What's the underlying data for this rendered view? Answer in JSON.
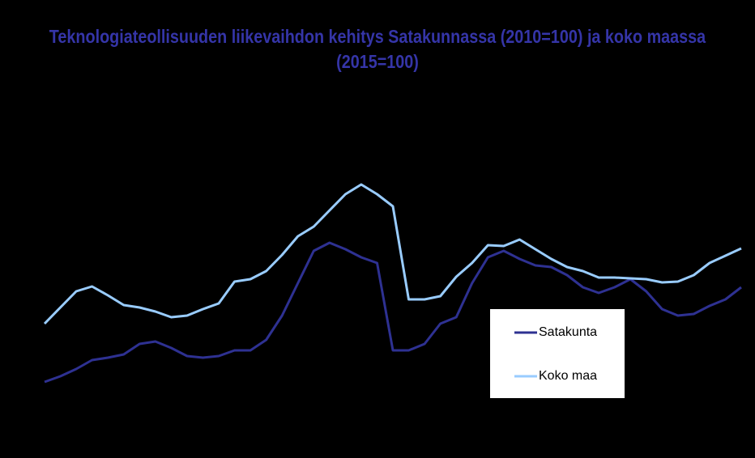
{
  "chart_data": {
    "type": "line",
    "title": "Teknologiateollisuuden liikevaihdon kehitys Satakunnassa (2010=100) ja koko maassa (2015=100)",
    "ylim": [
      40,
      180
    ],
    "legend": "lower-right",
    "series": [
      {
        "name": "Satakunta",
        "color": "#2e3192",
        "values": [
          59.2,
          62,
          65.6,
          70,
          71.2,
          72.8,
          78,
          79.2,
          76,
          72,
          71.2,
          72,
          74.8,
          74.8,
          80,
          92,
          108,
          124,
          128,
          124.8,
          120.8,
          118,
          74.8,
          74.8,
          78,
          88,
          91.2,
          108,
          120.8,
          124,
          120,
          116.8,
          116,
          112,
          106,
          103.2,
          106,
          110,
          104,
          95.2,
          92,
          92.8,
          96.8,
          100,
          106
        ]
      },
      {
        "name": "Koko maa",
        "color": "#99ccff",
        "values": [
          88,
          96,
          104,
          106.4,
          102,
          97.2,
          96,
          94,
          91.2,
          92,
          95.2,
          98,
          108.8,
          110,
          114,
          122,
          131.2,
          136,
          144,
          152,
          156.8,
          152,
          146,
          100,
          100,
          101.6,
          111.2,
          118,
          126.8,
          126.4,
          129.6,
          124.8,
          120,
          116,
          114,
          110.8,
          110.8,
          110.4,
          110,
          108.4,
          108.8,
          112,
          118,
          121.6,
          125.2
        ]
      }
    ]
  }
}
